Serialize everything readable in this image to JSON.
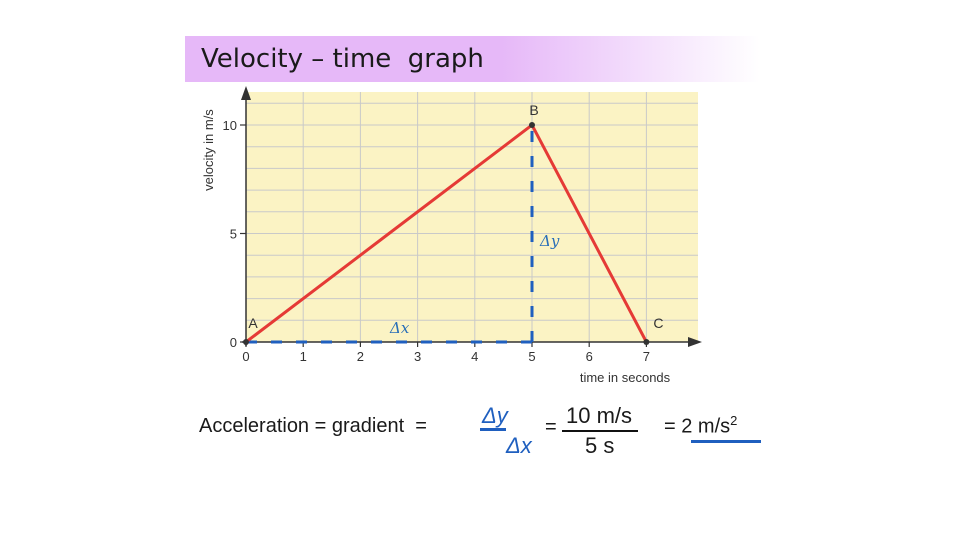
{
  "slide": {
    "title": "Velocity – time  graph"
  },
  "chart_data": {
    "type": "line",
    "ylabel": "velocity in m/s",
    "xlabel": "time in seconds",
    "xlim": [
      0,
      7.8
    ],
    "ylim": [
      0,
      10.8
    ],
    "x_ticks": [
      "0",
      "1",
      "2",
      "3",
      "4",
      "5",
      "6",
      "7"
    ],
    "y_ticks": [
      "0",
      "5",
      "10"
    ],
    "grid": true,
    "background_color": "#fbf3c4",
    "line_color": "#e53a36",
    "dash_color": "#1f5fbf",
    "series": [
      {
        "points": [
          [
            0,
            0
          ],
          [
            5,
            10
          ],
          [
            7,
            0
          ]
        ]
      }
    ],
    "point_labels": [
      {
        "text": "A",
        "x": 0,
        "y": 0
      },
      {
        "text": "B",
        "x": 5,
        "y": 10
      },
      {
        "text": "C",
        "x": 7,
        "y": 0
      }
    ],
    "annotations": {
      "dy_label": "Δy",
      "dx_label": "Δx"
    }
  },
  "formula": {
    "prefix": "Acceleration = gradient  =",
    "num_sym": "Δy",
    "den_sym": "Δx",
    "eq2": "=",
    "num_val": "10 m/s",
    "den_val": "5 s",
    "result": "= 2 m/s",
    "result_sup": "2"
  }
}
